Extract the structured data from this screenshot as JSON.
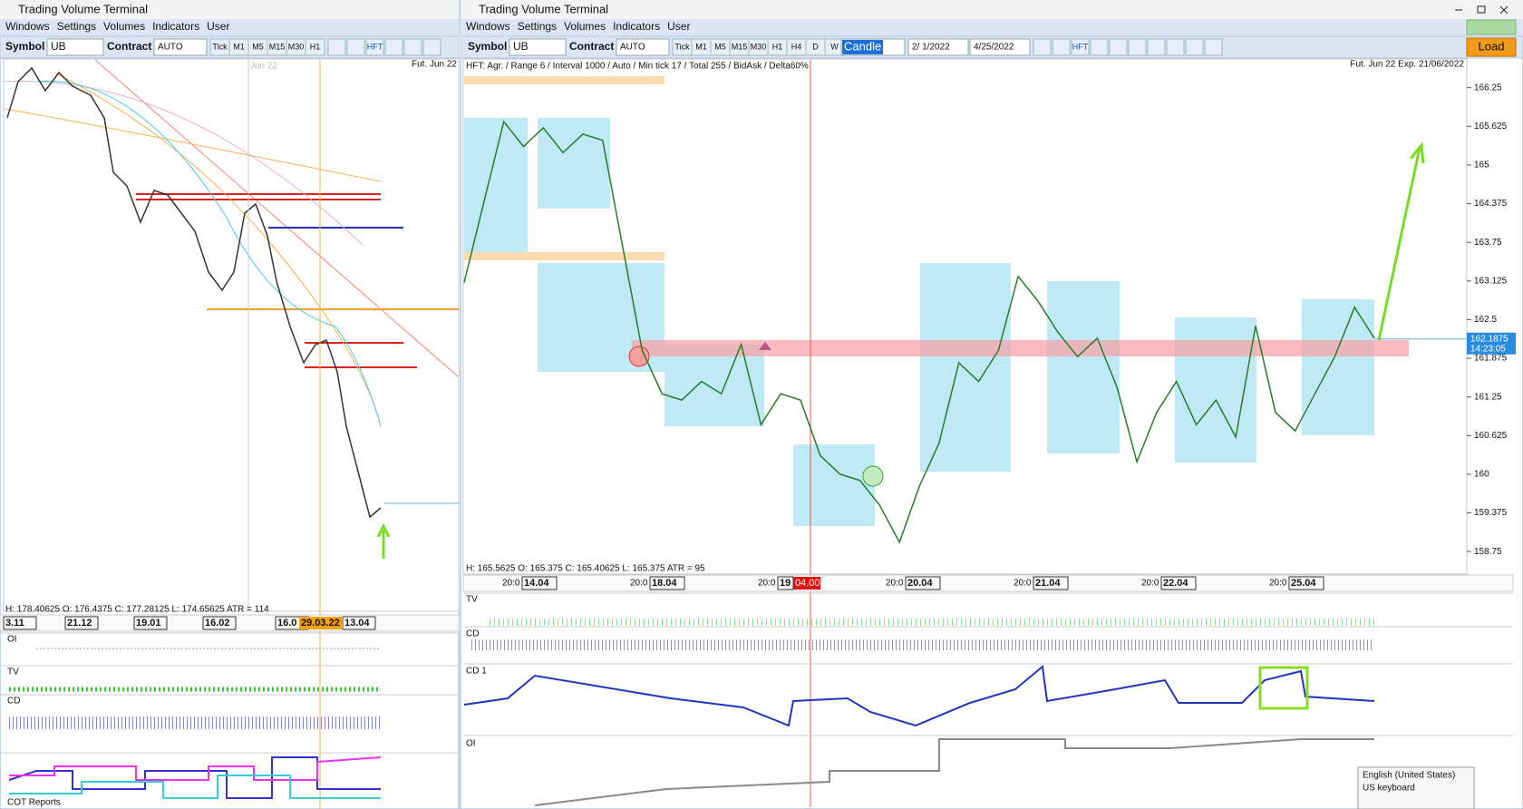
{
  "left_window": {
    "title": "Trading Volume Terminal",
    "menu": [
      "Windows",
      "Settings",
      "Volumes",
      "Indicators",
      "User"
    ],
    "toolbar": {
      "symbol_label": "Symbol",
      "symbol": "UB",
      "contract_label": "Contract",
      "contract": "AUTO",
      "timeframes": [
        "Tick",
        "M1",
        "M5",
        "M15",
        "M30",
        "H1"
      ],
      "hft": "HFT"
    },
    "chart": {
      "watermark": "Jun 22",
      "contract_note": "Fut. Jun 22",
      "ohlc": "H: 178.40625   O: 176.4375   C: 177.28125   L: 174.65625   ATR = 114",
      "dates": [
        "3.11",
        "21.12",
        "19.01",
        "16.02",
        "16.0",
        "13.04"
      ],
      "current_date": "29.03.22"
    },
    "panels": [
      "OI",
      "TV",
      "CD"
    ],
    "footer": "COT Reports"
  },
  "right_window": {
    "title": "Trading Volume Terminal",
    "menu": [
      "Windows",
      "Settings",
      "Volumes",
      "Indicators",
      "User"
    ],
    "toolbar": {
      "symbol_label": "Symbol",
      "symbol": "UB",
      "contract_label": "Contract",
      "contract": "AUTO",
      "timeframes": [
        "Tick",
        "M1",
        "M5",
        "M15",
        "M30",
        "H1",
        "H4",
        "D",
        "W"
      ],
      "chart_type": "Candle",
      "date_from": "2/ 1/2022",
      "date_to": "4/25/2022",
      "hft": "HFT",
      "load": "Load"
    },
    "chart": {
      "info": "HFT: Agr. / Range 6 / Interval 1000 / Auto / Min tick 17 / Total 255 / BidAsk / Delta60%",
      "contract_note": "Fut. Jun 22 Exp. 21/06/2022",
      "ylim": [
        158.4,
        166.7
      ],
      "yticks": [
        166.25,
        165.625,
        165,
        164.375,
        163.75,
        163.125,
        162.5,
        161.875,
        161.25,
        160.625,
        160,
        159.375,
        158.75
      ],
      "close": [
        163.1,
        164.4,
        165.7,
        165.3,
        165.6,
        165.2,
        165.5,
        165.4,
        163.7,
        162.0,
        161.3,
        161.2,
        161.5,
        161.3,
        162.1,
        160.8,
        161.3,
        161.2,
        160.3,
        160.0,
        159.9,
        159.5,
        158.9,
        159.8,
        160.5,
        161.8,
        161.5,
        162.0,
        163.2,
        162.8,
        162.3,
        161.9,
        162.2,
        161.4,
        160.2,
        161.0,
        161.5,
        160.8,
        161.2,
        160.6,
        162.4,
        161.0,
        160.7,
        161.3,
        161.9,
        162.7,
        162.2
      ],
      "last_price": 162.1875,
      "timer": "14:23:05",
      "ohlc": "H: 165.5625   O: 165.375   C: 165.40625   L: 165.375   ATR = 95",
      "time_axis": [
        {
          "time": "20:0",
          "date": "14.04"
        },
        {
          "time": "20:0",
          "date": "18.04"
        },
        {
          "time": "20:0",
          "date": "19",
          "marker": "04.00"
        },
        {
          "time": "20:0",
          "date": "20.04"
        },
        {
          "time": "20:0",
          "date": "21.04"
        },
        {
          "time": "20:0",
          "date": "22.04"
        },
        {
          "time": "20:0",
          "date": "25.04"
        }
      ]
    },
    "panels": [
      "TV",
      "CD",
      "CD 1",
      "OI"
    ],
    "keyboard_popup": {
      "language": "English (United States)",
      "layout": "US keyboard"
    }
  }
}
